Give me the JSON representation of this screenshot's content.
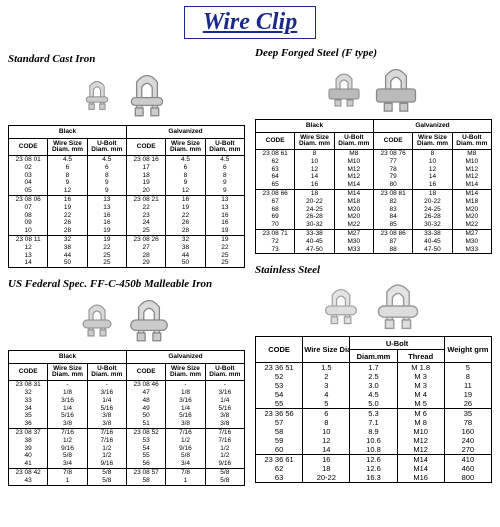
{
  "title": "Wire Clip",
  "sections": {
    "sci": {
      "title": "Standard Cast Iron"
    },
    "dfs": {
      "title": "Deep Forged Steel (F type)"
    },
    "usf": {
      "title": "US Federal Spec. FF-C-450b Malleable Iron"
    },
    "ss": {
      "title": "Stainless Steel"
    }
  },
  "heads": {
    "black": "Black",
    "galv": "Galvanized",
    "code": "CODE",
    "ws": "Wire Size Diam. mm",
    "ub": "U-Bolt Diam. mm",
    "ubDiam": "Diam.mm",
    "thread": "Thread",
    "weight": "Weight grm",
    "uBoltSpan": "U-Bolt"
  },
  "sci_rows": [
    [
      [
        "23 08 01",
        "4.5",
        "4.5"
      ],
      [
        "23 08 16",
        "4.5",
        "4.5"
      ]
    ],
    [
      [
        "02",
        "6",
        "6"
      ],
      [
        "17",
        "6",
        "6"
      ]
    ],
    [
      [
        "03",
        "8",
        "8"
      ],
      [
        "18",
        "8",
        "8"
      ]
    ],
    [
      [
        "04",
        "9",
        "9"
      ],
      [
        "19",
        "9",
        "9"
      ]
    ],
    [
      [
        "05",
        "12",
        "9"
      ],
      [
        "20",
        "12",
        "9"
      ]
    ],
    [
      [
        "23 08 06",
        "16",
        "13"
      ],
      [
        "23 08 21",
        "16",
        "13"
      ]
    ],
    [
      [
        "07",
        "19",
        "13"
      ],
      [
        "22",
        "19",
        "13"
      ]
    ],
    [
      [
        "08",
        "22",
        "16"
      ],
      [
        "23",
        "22",
        "16"
      ]
    ],
    [
      [
        "09",
        "26",
        "16"
      ],
      [
        "24",
        "26",
        "16"
      ]
    ],
    [
      [
        "10",
        "28",
        "19"
      ],
      [
        "25",
        "28",
        "19"
      ]
    ],
    [
      [
        "23 08 11",
        "32",
        "19"
      ],
      [
        "23 08 26",
        "32",
        "19"
      ]
    ],
    [
      [
        "12",
        "38",
        "22"
      ],
      [
        "27",
        "38",
        "22"
      ]
    ],
    [
      [
        "13",
        "44",
        "25"
      ],
      [
        "28",
        "44",
        "25"
      ]
    ],
    [
      [
        "14",
        "50",
        "25"
      ],
      [
        "29",
        "50",
        "25"
      ]
    ]
  ],
  "sci_breaks": [
    5,
    10
  ],
  "dfs_rows": [
    [
      [
        "23 08 61",
        "8",
        "M8"
      ],
      [
        "23 08 76",
        "8",
        "M8"
      ]
    ],
    [
      [
        "62",
        "10",
        "M10"
      ],
      [
        "77",
        "10",
        "M10"
      ]
    ],
    [
      [
        "63",
        "12",
        "M12"
      ],
      [
        "78",
        "12",
        "M12"
      ]
    ],
    [
      [
        "64",
        "14",
        "M12"
      ],
      [
        "79",
        "14",
        "M12"
      ]
    ],
    [
      [
        "65",
        "16",
        "M14"
      ],
      [
        "80",
        "16",
        "M14"
      ]
    ],
    [
      [
        "23 08 66",
        "18",
        "M14"
      ],
      [
        "23 08 81",
        "18",
        "M14"
      ]
    ],
    [
      [
        "67",
        "20-22",
        "M18"
      ],
      [
        "82",
        "20-22",
        "M18"
      ]
    ],
    [
      [
        "68",
        "24-25",
        "M20"
      ],
      [
        "83",
        "24-25",
        "M20"
      ]
    ],
    [
      [
        "69",
        "26-28",
        "M20"
      ],
      [
        "84",
        "26-28",
        "M20"
      ]
    ],
    [
      [
        "70",
        "30-32",
        "M22"
      ],
      [
        "85",
        "30-32",
        "M22"
      ]
    ],
    [
      [
        "23 08 71",
        "33-38",
        "M27"
      ],
      [
        "23 08 86",
        "33-38",
        "M27"
      ]
    ],
    [
      [
        "72",
        "40-45",
        "M30"
      ],
      [
        "87",
        "40-45",
        "M30"
      ]
    ],
    [
      [
        "73",
        "47-50",
        "M33"
      ],
      [
        "88",
        "47-50",
        "M33"
      ]
    ]
  ],
  "dfs_breaks": [
    5,
    10
  ],
  "usf_rows": [
    [
      [
        "23 08 31",
        "-",
        "-"
      ],
      [
        "23 08 46",
        "-",
        "-"
      ]
    ],
    [
      [
        "32",
        "1/8",
        "3/16"
      ],
      [
        "47",
        "1/8",
        "3/16"
      ]
    ],
    [
      [
        "33",
        "3/16",
        "1/4"
      ],
      [
        "48",
        "3/16",
        "1/4"
      ]
    ],
    [
      [
        "34",
        "1/4",
        "5/16"
      ],
      [
        "49",
        "1/4",
        "5/16"
      ]
    ],
    [
      [
        "35",
        "5/16",
        "3/8"
      ],
      [
        "50",
        "5/16",
        "3/8"
      ]
    ],
    [
      [
        "36",
        "3/8",
        "3/8"
      ],
      [
        "51",
        "3/8",
        "3/8"
      ]
    ],
    [
      [
        "23 08 37",
        "7/16",
        "7/16"
      ],
      [
        "23 08 52",
        "7/16",
        "7/16"
      ]
    ],
    [
      [
        "38",
        "1/2",
        "7/16"
      ],
      [
        "53",
        "1/2",
        "7/16"
      ]
    ],
    [
      [
        "39",
        "9/16",
        "1/2"
      ],
      [
        "54",
        "9/16",
        "1/2"
      ]
    ],
    [
      [
        "40",
        "5/8",
        "1/2"
      ],
      [
        "55",
        "5/8",
        "1/2"
      ]
    ],
    [
      [
        "41",
        "3/4",
        "9/16"
      ],
      [
        "56",
        "3/4",
        "9/16"
      ]
    ],
    [
      [
        "23 08 42",
        "7/8",
        "5/8"
      ],
      [
        "23 08 57",
        "7/8",
        "5/8"
      ]
    ],
    [
      [
        "43",
        "1",
        "5/8"
      ],
      [
        "58",
        "1",
        "5/8"
      ]
    ]
  ],
  "usf_breaks": [
    6,
    11
  ],
  "ss_rows": [
    [
      "23 36 51",
      "1.5",
      "1.7",
      "M 1.8",
      "5"
    ],
    [
      "52",
      "2",
      "2.5",
      "M 3",
      "8"
    ],
    [
      "53",
      "3",
      "3.0",
      "M 3",
      "11"
    ],
    [
      "54",
      "4",
      "4.5",
      "M 4",
      "19"
    ],
    [
      "55",
      "5",
      "5.0",
      "M 5",
      "26"
    ],
    [
      "23 36 56",
      "6",
      "5.3",
      "M 6",
      "35"
    ],
    [
      "57",
      "8",
      "7.1",
      "M 8",
      "78"
    ],
    [
      "58",
      "10",
      "8.9",
      "M10",
      "160"
    ],
    [
      "59",
      "12",
      "10.6",
      "M12",
      "240"
    ],
    [
      "60",
      "14",
      "10.8",
      "M12",
      "270"
    ],
    [
      "23 36 61",
      "16",
      "12.6",
      "M14",
      "410"
    ],
    [
      "62",
      "18",
      "12.6",
      "M14",
      "460"
    ],
    [
      "63",
      "20-22",
      "16.3",
      "M16",
      "800"
    ]
  ],
  "ss_breaks": [
    5,
    10
  ]
}
